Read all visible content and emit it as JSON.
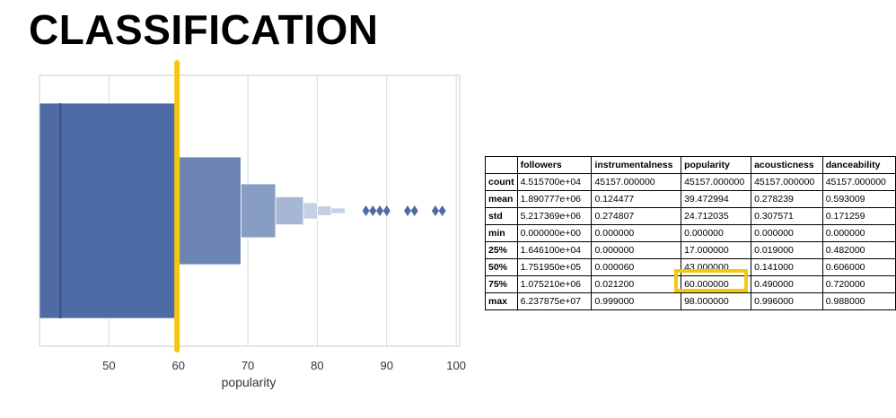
{
  "slide": {
    "title": "CLASSIFICATION"
  },
  "colors": {
    "box_levels": [
      "#4f6ba5",
      "#6b84b4",
      "#889dc4",
      "#a6b6d4",
      "#c4d0e4"
    ],
    "median_line": "#3a4e7a",
    "outlier": "#4f6ba5",
    "highlight": "#f2c811",
    "grid": "#d9d9d9"
  },
  "chart_data": {
    "type": "boxen",
    "variable": "popularity",
    "xlabel": "popularity",
    "ylabel": "",
    "xlim": [
      40,
      100.5
    ],
    "xticks": [
      50,
      60,
      70,
      80,
      90,
      100
    ],
    "grid": true,
    "boxes": [
      {
        "level": 1,
        "low": 40,
        "high": 59.5
      },
      {
        "level": 2,
        "low": 60,
        "high": 69
      },
      {
        "level": 3,
        "low": 69,
        "high": 74
      },
      {
        "level": 4,
        "low": 74,
        "high": 78
      },
      {
        "level": 5,
        "low": 78,
        "high": 80
      },
      {
        "level": 6,
        "low": 80,
        "high": 82
      },
      {
        "level": 7,
        "low": 82,
        "high": 84
      }
    ],
    "median": 43,
    "outliers": [
      87,
      88,
      89,
      90,
      93,
      94,
      97,
      98
    ],
    "reference_line": {
      "value": 59.8,
      "color": "#f2c811"
    }
  },
  "table": {
    "columns": [
      "",
      "followers",
      "instrumentalness",
      "popularity",
      "acousticness",
      "danceability"
    ],
    "rows": [
      {
        "label": "count",
        "cells": [
          "4.515700e+04",
          "45157.000000",
          "45157.000000",
          "45157.000000",
          "45157.000000"
        ]
      },
      {
        "label": "mean",
        "cells": [
          "1.890777e+06",
          "0.124477",
          "39.472994",
          "0.278239",
          "0.593009"
        ]
      },
      {
        "label": "std",
        "cells": [
          "5.217369e+06",
          "0.274807",
          "24.712035",
          "0.307571",
          "0.171259"
        ]
      },
      {
        "label": "min",
        "cells": [
          "0.000000e+00",
          "0.000000",
          "0.000000",
          "0.000000",
          "0.000000"
        ]
      },
      {
        "label": "25%",
        "cells": [
          "1.646100e+04",
          "0.000000",
          "17.000000",
          "0.019000",
          "0.482000"
        ]
      },
      {
        "label": "50%",
        "cells": [
          "1.751950e+05",
          "0.000060",
          "43.000000",
          "0.141000",
          "0.606000"
        ]
      },
      {
        "label": "75%",
        "cells": [
          "1.075210e+06",
          "0.021200",
          "60.000000",
          "0.490000",
          "0.720000"
        ]
      },
      {
        "label": "max",
        "cells": [
          "6.237875e+07",
          "0.999000",
          "98.000000",
          "0.996000",
          "0.988000"
        ]
      }
    ]
  }
}
